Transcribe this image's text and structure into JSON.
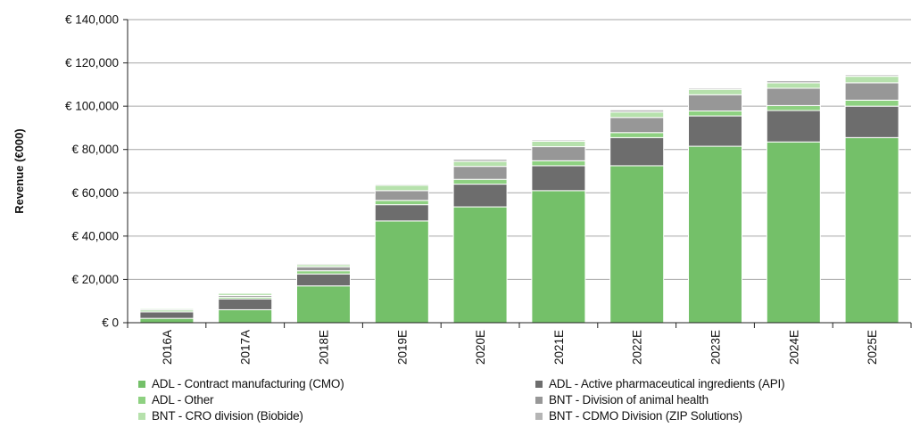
{
  "chart_data": {
    "type": "bar",
    "stacked": true,
    "title": "",
    "xlabel": "",
    "ylabel": "Revenue (€000)",
    "ylim": [
      0,
      140000
    ],
    "yticks": [
      0,
      20000,
      40000,
      60000,
      80000,
      100000,
      120000,
      140000
    ],
    "ytick_labels": [
      "€ 0",
      "€ 20,000",
      "€ 40,000",
      "€ 60,000",
      "€ 80,000",
      "€ 100,000",
      "€ 120,000",
      "€ 140,000"
    ],
    "grid": true,
    "legend_position": "bottom",
    "categories": [
      "2016A",
      "2017A",
      "2018E",
      "2019E",
      "2020E",
      "2021E",
      "2022E",
      "2023E",
      "2024E",
      "2025E"
    ],
    "series": [
      {
        "name": "ADL - Contract manufacturing (CMO)",
        "color": "#74c069",
        "values": [
          2000,
          6000,
          17000,
          47000,
          53500,
          61000,
          72500,
          81500,
          83500,
          85500
        ]
      },
      {
        "name": "ADL - Active pharmaceutical ingredients (API)",
        "color": "#6d6d6d",
        "values": [
          3000,
          5000,
          5500,
          7500,
          10500,
          11500,
          13000,
          14000,
          14500,
          14500
        ]
      },
      {
        "name": "ADL - Other",
        "color": "#8ed181",
        "values": [
          800,
          800,
          1500,
          2000,
          2200,
          2300,
          2300,
          2300,
          2300,
          2800
        ]
      },
      {
        "name": "BNT - Division of animal health",
        "color": "#979797",
        "values": [
          500,
          800,
          1800,
          4500,
          6000,
          6500,
          7000,
          7500,
          8000,
          8000
        ]
      },
      {
        "name": "BNT - CRO division (Biobide)",
        "color": "#b6e1ac",
        "values": [
          500,
          1000,
          1000,
          2500,
          2300,
          2500,
          2500,
          2500,
          2500,
          3000
        ]
      },
      {
        "name": "BNT - CDMO Division (ZIP Solutions)",
        "color": "#b5b5b5",
        "values": [
          200,
          200,
          500,
          500,
          1000,
          600,
          1000,
          600,
          1000,
          700
        ]
      }
    ]
  }
}
